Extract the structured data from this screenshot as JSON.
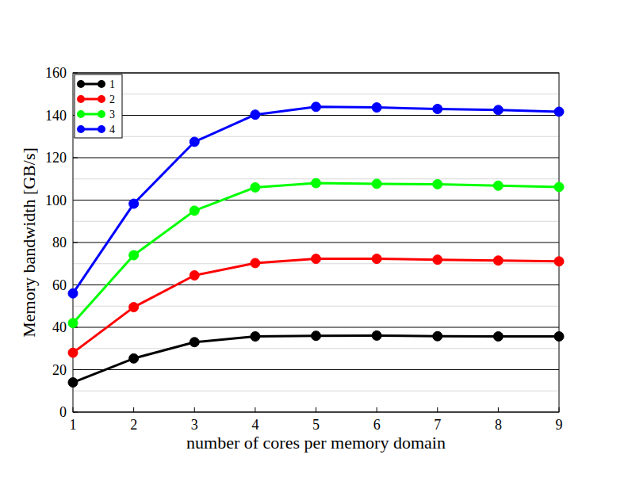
{
  "chart_data": {
    "type": "line",
    "x_label": "number of cores per memory domain",
    "y_label": "Memory bandwidth [GB/s]",
    "x": [
      1,
      2,
      3,
      4,
      5,
      6,
      7,
      8,
      9
    ],
    "series": [
      {
        "name": "1",
        "color": "#000000",
        "marker": "circle",
        "values": [
          14,
          25.3,
          33,
          35.7,
          36,
          36.1,
          35.8,
          35.7,
          35.7
        ]
      },
      {
        "name": "2",
        "color": "#ff0000",
        "marker": "circle",
        "values": [
          28,
          49.5,
          64.5,
          70.3,
          72.3,
          72.3,
          71.9,
          71.5,
          71.1
        ]
      },
      {
        "name": "3",
        "color": "#00ff00",
        "marker": "circle",
        "values": [
          42,
          74,
          95,
          106,
          108,
          107.7,
          107.5,
          106.8,
          106.2
        ]
      },
      {
        "name": "4",
        "color": "#0000ff",
        "marker": "circle",
        "values": [
          56,
          98.3,
          127.5,
          140.3,
          144,
          143.7,
          143,
          142.5,
          141.7
        ]
      }
    ],
    "xlim": [
      1,
      9
    ],
    "xticks": [
      1,
      2,
      3,
      4,
      5,
      6,
      7,
      8,
      9
    ],
    "ylim": [
      0,
      160
    ],
    "yticks": [
      0,
      20,
      40,
      60,
      80,
      100,
      120,
      140,
      160
    ],
    "grid": true,
    "legend": "top-left"
  }
}
